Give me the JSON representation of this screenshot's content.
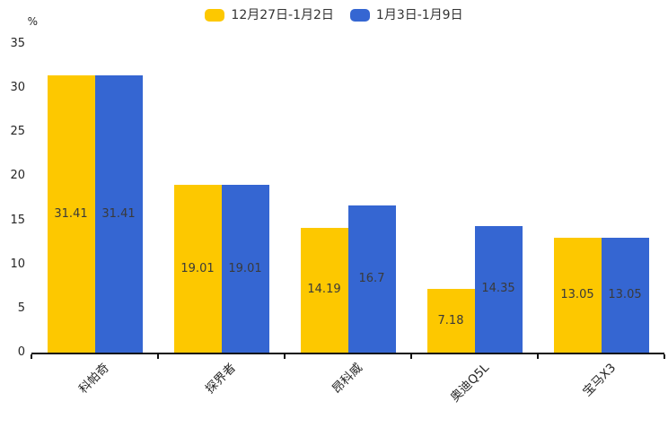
{
  "chart_data": {
    "type": "bar",
    "categories": [
      "科帕奇",
      "探界者",
      "昂科威",
      "奥迪Q5L",
      "宝马X3"
    ],
    "series": [
      {
        "name": "12月27日-1月2日",
        "color": "#FDC800",
        "values": [
          31.41,
          19.01,
          14.19,
          7.18,
          13.05
        ]
      },
      {
        "name": "1月3日-1月9日",
        "color": "#3566D2",
        "values": [
          31.41,
          19.01,
          16.7,
          14.35,
          13.05
        ]
      }
    ],
    "title": "",
    "xlabel": "",
    "ylabel": "%",
    "ylim": [
      0,
      35
    ],
    "y_ticks": [
      0,
      5,
      10,
      15,
      20,
      25,
      30,
      35
    ],
    "grid": false,
    "legend_position": "top",
    "bar_labels": true,
    "bar_label_color": "#3a3a3a",
    "axis_color": "#111111"
  }
}
